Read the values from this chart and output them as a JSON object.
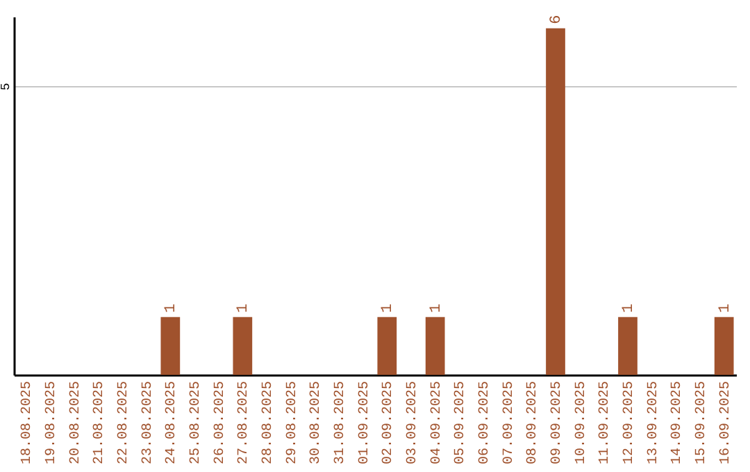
{
  "chart_data": {
    "type": "bar",
    "categories": [
      "18.08.2025",
      "19.08.2025",
      "20.08.2025",
      "21.08.2025",
      "22.08.2025",
      "23.08.2025",
      "24.08.2025",
      "25.08.2025",
      "26.08.2025",
      "27.08.2025",
      "28.08.2025",
      "29.08.2025",
      "30.08.2025",
      "31.08.2025",
      "01.09.2025",
      "02.09.2025",
      "03.09.2025",
      "04.09.2025",
      "05.09.2025",
      "06.09.2025",
      "07.09.2025",
      "08.09.2025",
      "09.09.2025",
      "10.09.2025",
      "11.09.2025",
      "12.09.2025",
      "13.09.2025",
      "14.09.2025",
      "15.09.2025",
      "16.09.2025"
    ],
    "values": [
      0,
      0,
      0,
      0,
      0,
      0,
      1,
      0,
      0,
      1,
      0,
      0,
      0,
      0,
      0,
      1,
      0,
      1,
      0,
      0,
      0,
      0,
      6,
      0,
      0,
      1,
      0,
      0,
      0,
      1
    ],
    "value_labels": [
      null,
      null,
      null,
      null,
      null,
      null,
      "1",
      null,
      null,
      "1",
      null,
      null,
      null,
      null,
      null,
      "1",
      null,
      "1",
      null,
      null,
      null,
      null,
      "6",
      null,
      null,
      "1",
      null,
      null,
      null,
      "1"
    ],
    "color": "#a0522d",
    "ylim": [
      0,
      6.2
    ],
    "yticks": [
      5
    ],
    "grid": "y"
  }
}
